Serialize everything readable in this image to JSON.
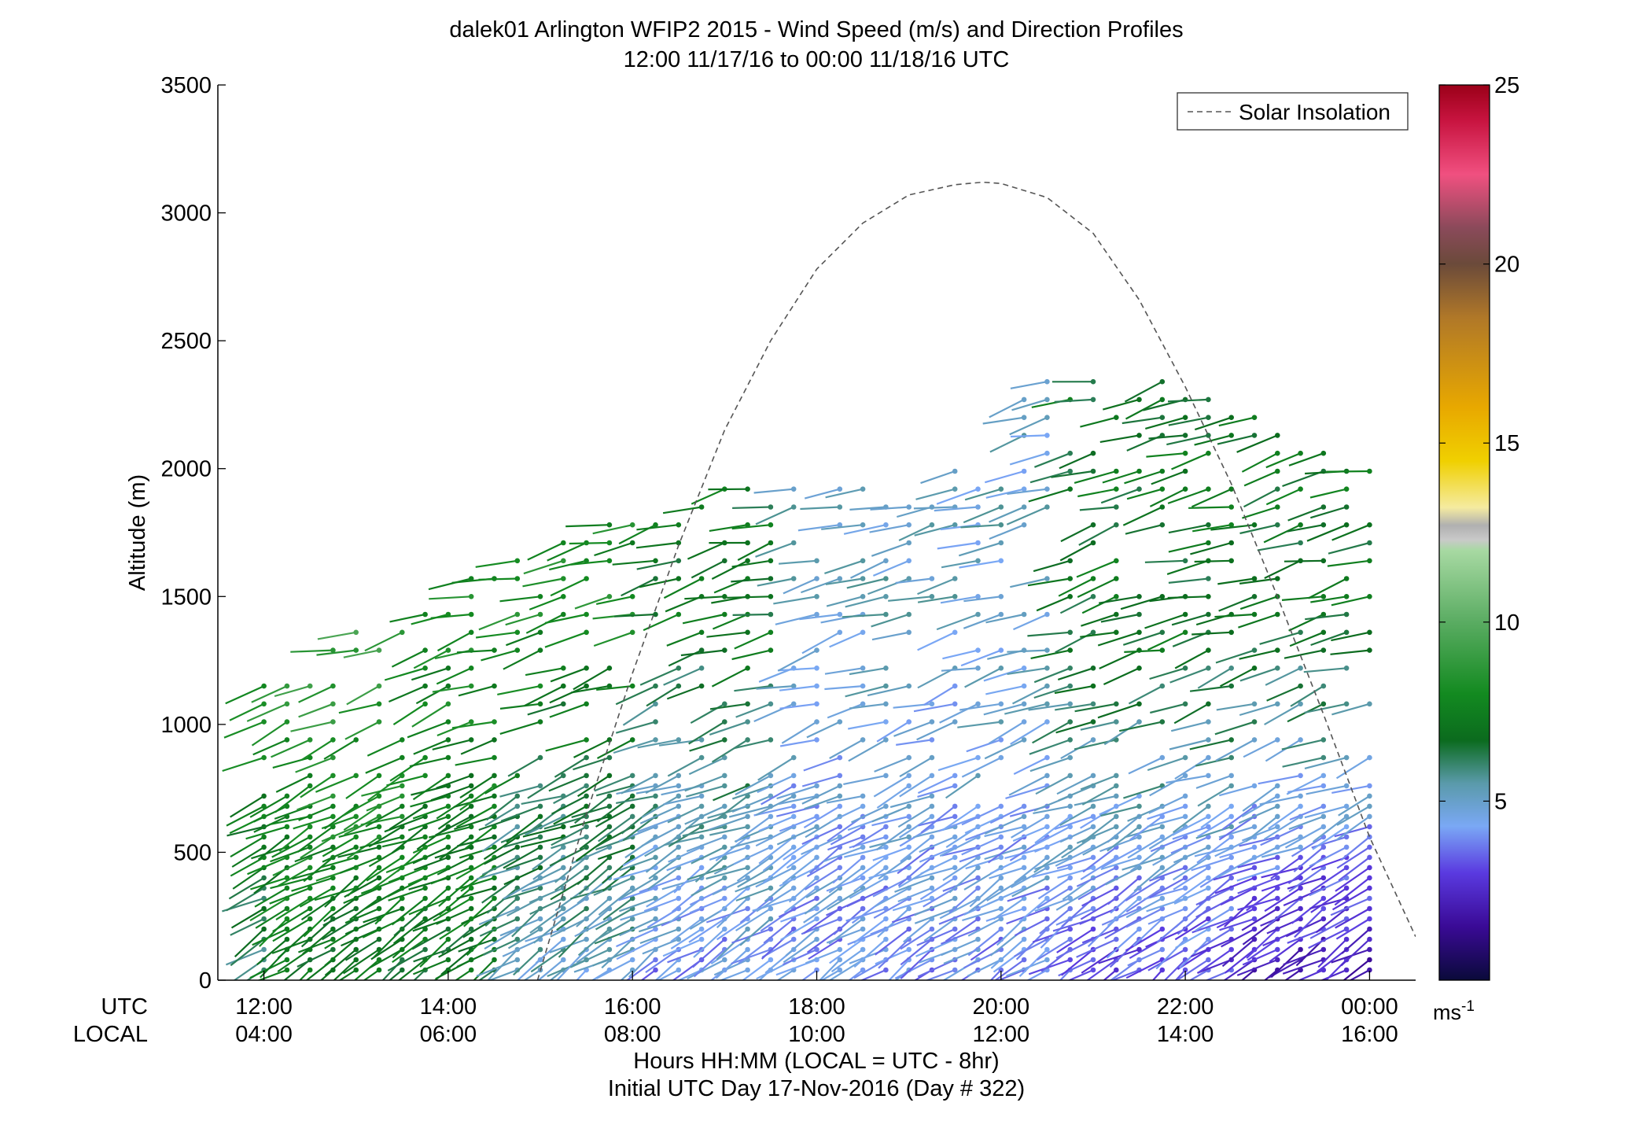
{
  "chart_data": {
    "type": "scatter",
    "subtype": "wind-barb-profile",
    "title": "dalek01 Arlington WFIP2 2015 - Wind Speed (m/s) and Direction Profiles",
    "subtitle": "12:00 11/17/16 to 00:00 11/18/16  UTC",
    "ylabel": "Altitude (m)",
    "xlabel": "Hours HH:MM  (LOCAL = UTC - 8hr)",
    "xlabel2": "Initial UTC Day 17-Nov-2016 (Day # 322)",
    "xlim": [
      11.5,
      24.5
    ],
    "ylim": [
      0,
      3500
    ],
    "yticks": [
      0,
      500,
      1000,
      1500,
      2000,
      2500,
      3000,
      3500
    ],
    "x_row_labels": {
      "utc": "UTC",
      "local": "LOCAL"
    },
    "x_ticks_utc": [
      "12:00",
      "14:00",
      "16:00",
      "18:00",
      "20:00",
      "22:00",
      "00:00"
    ],
    "x_ticks_local": [
      "04:00",
      "06:00",
      "08:00",
      "10:00",
      "12:00",
      "14:00",
      "16:00"
    ],
    "x_tick_hours": [
      12,
      14,
      16,
      18,
      20,
      22,
      24
    ],
    "legend": {
      "entry": "Solar Insolation",
      "placement": "top-right",
      "line_style": "dashed"
    },
    "colorbar": {
      "ticks": [
        5,
        10,
        15,
        20,
        25
      ],
      "range": [
        0,
        25
      ],
      "unit_label": "ms",
      "unit_exponent": "-1",
      "stops": [
        {
          "v": 0,
          "c": "#0a0a3a"
        },
        {
          "v": 1.5,
          "c": "#3a0a96"
        },
        {
          "v": 3,
          "c": "#5a3ae0"
        },
        {
          "v": 4.3,
          "c": "#7aa8f5"
        },
        {
          "v": 5.5,
          "c": "#5a9aaa"
        },
        {
          "v": 6.7,
          "c": "#0b6b1e"
        },
        {
          "v": 8,
          "c": "#138a20"
        },
        {
          "v": 10,
          "c": "#5aac62"
        },
        {
          "v": 12,
          "c": "#a7d9a2"
        },
        {
          "v": 12.3,
          "c": "#c9c9c9"
        },
        {
          "v": 12.7,
          "c": "#b0b0b0"
        },
        {
          "v": 13.2,
          "c": "#f5eba0"
        },
        {
          "v": 14.5,
          "c": "#f0d000"
        },
        {
          "v": 16,
          "c": "#e8a800"
        },
        {
          "v": 18.5,
          "c": "#b07828"
        },
        {
          "v": 20,
          "c": "#6b4a3a"
        },
        {
          "v": 21,
          "c": "#8a4a5a"
        },
        {
          "v": 22.5,
          "c": "#f05080"
        },
        {
          "v": 24,
          "c": "#c81440"
        },
        {
          "v": 25,
          "c": "#9a0018"
        }
      ]
    },
    "solar_insolation": {
      "hours": [
        14.97,
        15.5,
        16,
        16.5,
        17,
        17.5,
        18,
        18.5,
        19,
        19.5,
        19.8,
        20,
        20.5,
        21,
        21.5,
        22,
        22.5,
        23,
        23.5,
        24,
        24.5
      ],
      "altitude": [
        0,
        650,
        1200,
        1700,
        2150,
        2500,
        2780,
        2960,
        3070,
        3110,
        3120,
        3115,
        3060,
        2920,
        2660,
        2320,
        1940,
        1500,
        1040,
        560,
        170
      ]
    },
    "barbs_summary": {
      "time_start_hour": 12,
      "time_end_hour": 24,
      "profile_interval_min": 15,
      "low_level_speed_ms": [
        6,
        7,
        7,
        7,
        7,
        7,
        5,
        5,
        5,
        4,
        4,
        4,
        4,
        4,
        4,
        4,
        4,
        4,
        3,
        3,
        3,
        3,
        2,
        2,
        2
      ],
      "upper_level_speed_ms": [
        9,
        9,
        9,
        9,
        8,
        8,
        8,
        8,
        8,
        7,
        7,
        7,
        5,
        5,
        5,
        5,
        5,
        5,
        7,
        7,
        7,
        7,
        7,
        7,
        7
      ]
    }
  }
}
